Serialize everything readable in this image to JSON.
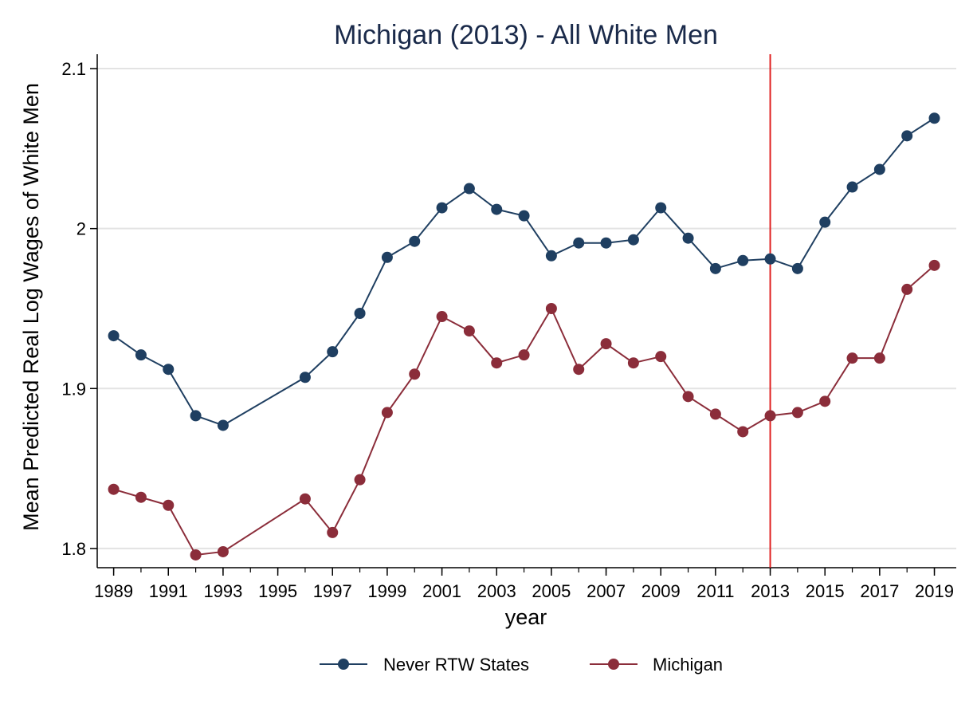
{
  "chart_data": {
    "type": "line",
    "title": "Michigan (2013) - All White Men",
    "xlabel": "year",
    "ylabel": "Mean Predicted Real Log Wages of White Men",
    "xlim": [
      1988.4,
      2019.8
    ],
    "ylim": [
      1.788,
      2.109
    ],
    "x_ticks": [
      1989,
      1991,
      1993,
      1995,
      1997,
      1999,
      2001,
      2003,
      2005,
      2007,
      2009,
      2011,
      2013,
      2015,
      2017,
      2019
    ],
    "x_tick_labels": [
      "1989",
      "1991",
      "1993",
      "1995",
      "1997",
      "1999",
      "2001",
      "2003",
      "2005",
      "2007",
      "2009",
      "2011",
      "2013",
      "2015",
      "2017",
      "2019"
    ],
    "y_ticks": [
      1.8,
      1.9,
      2.0,
      2.1
    ],
    "y_tick_labels": [
      "1.8",
      "1.9",
      "2",
      "2.1"
    ],
    "grid": "horizontal",
    "treatment_line": {
      "x": 2013,
      "color": "#e02020"
    },
    "legend_position": "bottom",
    "series": [
      {
        "name": "Never RTW States",
        "color": "#1f3f61",
        "points": [
          [
            1989,
            1.933
          ],
          [
            1990,
            1.921
          ],
          [
            1991,
            1.912
          ],
          [
            1992,
            1.883
          ],
          [
            1993,
            1.877
          ],
          [
            1996,
            1.907
          ],
          [
            1997,
            1.923
          ],
          [
            1998,
            1.947
          ],
          [
            1999,
            1.982
          ],
          [
            2000,
            1.992
          ],
          [
            2001,
            2.013
          ],
          [
            2002,
            2.025
          ],
          [
            2003,
            2.012
          ],
          [
            2004,
            2.008
          ],
          [
            2005,
            1.983
          ],
          [
            2006,
            1.991
          ],
          [
            2007,
            1.991
          ],
          [
            2008,
            1.993
          ],
          [
            2009,
            2.013
          ],
          [
            2010,
            1.994
          ],
          [
            2011,
            1.975
          ],
          [
            2012,
            1.98
          ],
          [
            2013,
            1.981
          ],
          [
            2014,
            1.975
          ],
          [
            2015,
            2.004
          ],
          [
            2016,
            2.026
          ],
          [
            2017,
            2.037
          ],
          [
            2018,
            2.058
          ],
          [
            2019,
            2.069
          ]
        ]
      },
      {
        "name": "Michigan",
        "color": "#8b2d3a",
        "points": [
          [
            1989,
            1.837
          ],
          [
            1990,
            1.832
          ],
          [
            1991,
            1.827
          ],
          [
            1992,
            1.796
          ],
          [
            1993,
            1.798
          ],
          [
            1996,
            1.831
          ],
          [
            1997,
            1.81
          ],
          [
            1998,
            1.843
          ],
          [
            1999,
            1.885
          ],
          [
            2000,
            1.909
          ],
          [
            2001,
            1.945
          ],
          [
            2002,
            1.936
          ],
          [
            2003,
            1.916
          ],
          [
            2004,
            1.921
          ],
          [
            2005,
            1.95
          ],
          [
            2006,
            1.912
          ],
          [
            2007,
            1.928
          ],
          [
            2008,
            1.916
          ],
          [
            2009,
            1.92
          ],
          [
            2010,
            1.895
          ],
          [
            2011,
            1.884
          ],
          [
            2012,
            1.873
          ],
          [
            2013,
            1.883
          ],
          [
            2014,
            1.885
          ],
          [
            2015,
            1.892
          ],
          [
            2016,
            1.919
          ],
          [
            2017,
            1.919
          ],
          [
            2018,
            1.962
          ],
          [
            2019,
            1.977
          ]
        ]
      }
    ]
  }
}
